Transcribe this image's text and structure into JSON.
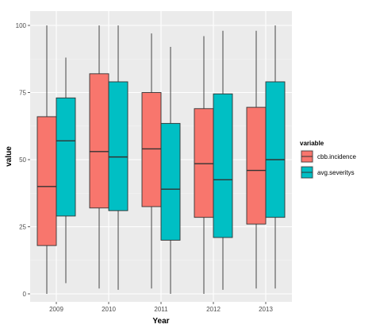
{
  "chart_data": {
    "type": "boxplot",
    "title": "",
    "xlabel": "Year",
    "ylabel": "value",
    "ylim": [
      0,
      100
    ],
    "yticks": [
      0,
      25,
      50,
      75,
      100
    ],
    "grid": true,
    "legend_position": "right",
    "legend_title": "variable",
    "categories": [
      "2009",
      "2010",
      "2011",
      "2012",
      "2013"
    ],
    "series": [
      {
        "name": "cbb.incidence",
        "color": "#F8766D",
        "boxes": [
          {
            "min": 0,
            "q1": 18,
            "median": 40,
            "q3": 66,
            "max": 100
          },
          {
            "min": 2,
            "q1": 32,
            "median": 53,
            "q3": 82,
            "max": 100
          },
          {
            "min": 2,
            "q1": 32.5,
            "median": 54,
            "q3": 75,
            "max": 97
          },
          {
            "min": 0,
            "q1": 28.5,
            "median": 48.5,
            "q3": 69,
            "max": 96
          },
          {
            "min": 2,
            "q1": 26,
            "median": 46,
            "q3": 69.5,
            "max": 98
          }
        ]
      },
      {
        "name": "avg.severitys",
        "color": "#00BFC4",
        "boxes": [
          {
            "min": 4,
            "q1": 29,
            "median": 57,
            "q3": 73,
            "max": 88
          },
          {
            "min": 1.5,
            "q1": 31,
            "median": 51,
            "q3": 79,
            "max": 100
          },
          {
            "min": 0,
            "q1": 20,
            "median": 39,
            "q3": 63.5,
            "max": 92
          },
          {
            "min": 1.5,
            "q1": 21,
            "median": 42.5,
            "q3": 74.5,
            "max": 98
          },
          {
            "min": 2,
            "q1": 28.5,
            "median": 50,
            "q3": 79,
            "max": 100
          }
        ]
      }
    ]
  }
}
